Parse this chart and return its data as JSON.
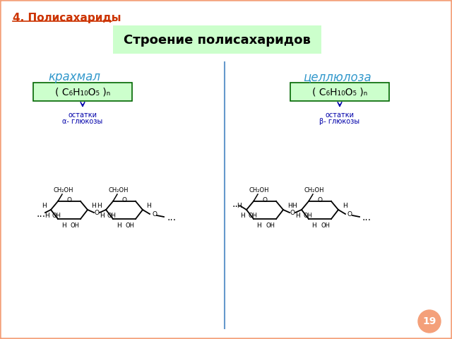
{
  "title": "4. Полисахариды",
  "subtitle": "Строение полисахаридов",
  "label_starch": "крахмал",
  "label_cellulose": "целлюлоза",
  "formula_text": "( C₆H₁₀O₅ )ₙ",
  "annotation_starch_1": "остатки",
  "annotation_starch_2": "α- глюкозы",
  "annotation_cellulose_1": "остатки",
  "annotation_cellulose_2": "β- глюкозы",
  "bg_color": "#FFFFFF",
  "slide_border_color": "#F4A07A",
  "title_color": "#CC3300",
  "subtitle_bg": "#CCFFCC",
  "label_color": "#3399CC",
  "formula_bg": "#CCFFCC",
  "formula_border": "#006600",
  "formula_color": "#000000",
  "annotation_color": "#0000AA",
  "struct_color": "#000000",
  "divider_color": "#6699CC",
  "page_num_bg": "#F4A07A",
  "page_num": "19"
}
